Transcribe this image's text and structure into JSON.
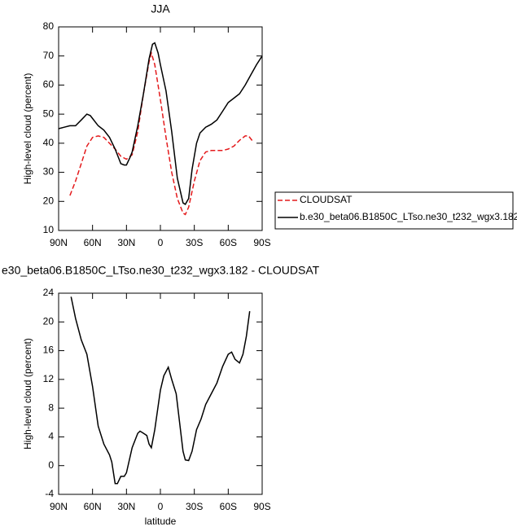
{
  "chart_data": [
    {
      "type": "line",
      "title": "JJA",
      "ylabel": "High-level cloud (percent)",
      "xlim": [
        90,
        -90
      ],
      "xticks": [
        {
          "value": 90,
          "label": "90N"
        },
        {
          "value": 60,
          "label": "60N"
        },
        {
          "value": 30,
          "label": "30N"
        },
        0,
        {
          "value": -30,
          "label": "30S"
        },
        {
          "value": -60,
          "label": "60S"
        },
        {
          "value": -90,
          "label": "90S"
        }
      ],
      "ylim": [
        10,
        80
      ],
      "yticks": [
        10,
        20,
        30,
        40,
        50,
        60,
        70,
        80
      ],
      "legend": "right",
      "series": [
        {
          "name": "CLOUDSAT",
          "color": "#e41a1c",
          "dashed": true,
          "x": [
            80,
            75,
            70,
            65,
            60,
            55,
            50,
            45,
            40,
            35,
            30,
            25,
            20,
            15,
            10,
            8,
            5,
            0,
            -5,
            -10,
            -15,
            -20,
            -22,
            -25,
            -30,
            -35,
            -40,
            -45,
            -50,
            -55,
            -60,
            -65,
            -70,
            -75,
            -78,
            -82
          ],
          "values": [
            22,
            27,
            33,
            39,
            42,
            42.5,
            42,
            40,
            38,
            35.5,
            34.5,
            36,
            44,
            57,
            68,
            71,
            67,
            55,
            42,
            30,
            21,
            16,
            15.5,
            18,
            27,
            34,
            37,
            37.5,
            37.5,
            37.5,
            38,
            39,
            41,
            42.5,
            42.5,
            40.5
          ]
        },
        {
          "name": "b.e30_beta06.B1850C_LTso.ne30_t232_wgx3.182",
          "color": "#000000",
          "dashed": false,
          "x": [
            90,
            85,
            80,
            75,
            70,
            65,
            62,
            60,
            55,
            50,
            45,
            40,
            35,
            32,
            30,
            27,
            25,
            20,
            15,
            10,
            7,
            5,
            2,
            0,
            -5,
            -10,
            -15,
            -20,
            -22,
            -25,
            -28,
            -32,
            -35,
            -40,
            -45,
            -50,
            -55,
            -60,
            -65,
            -70,
            -75,
            -80,
            -85,
            -90
          ],
          "values": [
            45,
            45.5,
            46,
            46,
            48,
            50,
            49.5,
            48.5,
            46,
            44.5,
            42,
            38,
            33,
            32.5,
            32.5,
            35,
            37,
            46,
            57,
            69,
            74,
            74.5,
            71,
            67,
            58,
            44,
            28,
            19.5,
            19,
            21,
            31,
            40,
            43.5,
            45.5,
            46.5,
            48,
            51,
            54,
            55.5,
            57,
            60,
            63.5,
            67,
            70
          ]
        }
      ]
    },
    {
      "type": "line",
      "title": "e30_beta06.B1850C_LTso.ne30_t232_wgx3.182 - CLOUDSAT",
      "xlabel": "latitude",
      "ylabel": "High-level cloud (percent)",
      "xlim": [
        90,
        -90
      ],
      "xticks": [
        {
          "value": 90,
          "label": "90N"
        },
        {
          "value": 60,
          "label": "60N"
        },
        {
          "value": 30,
          "label": "30N"
        },
        0,
        {
          "value": -30,
          "label": "30S"
        },
        {
          "value": -60,
          "label": "60S"
        },
        {
          "value": -90,
          "label": "90S"
        }
      ],
      "ylim": [
        -4,
        24
      ],
      "yticks": [
        -4,
        0,
        4,
        8,
        12,
        16,
        20,
        24
      ],
      "series": [
        {
          "color": "#000000",
          "dashed": false,
          "x": [
            79,
            75,
            70,
            65,
            60,
            55,
            50,
            45,
            43,
            40,
            38,
            35,
            32,
            30,
            25,
            20,
            18,
            15,
            12,
            10,
            8,
            5,
            0,
            -3,
            -7,
            -10,
            -14,
            -17,
            -20,
            -22,
            -25,
            -28,
            -32,
            -36,
            -40,
            -45,
            -50,
            -55,
            -60,
            -63,
            -66,
            -70,
            -73,
            -76,
            -79
          ],
          "values": [
            23.5,
            20.5,
            17.5,
            15.5,
            11,
            5.5,
            3,
            1.5,
            0.5,
            -2.5,
            -2.5,
            -1.5,
            -1.5,
            -1,
            2.5,
            4.5,
            4.8,
            4.5,
            4.2,
            3,
            2.5,
            5,
            10.5,
            12.5,
            13.7,
            12,
            10,
            6,
            2,
            0.8,
            0.7,
            2,
            5,
            6.5,
            8.5,
            10,
            11.5,
            13.8,
            15.5,
            15.8,
            14.8,
            14.3,
            15.5,
            18,
            21.5
          ]
        }
      ]
    }
  ]
}
